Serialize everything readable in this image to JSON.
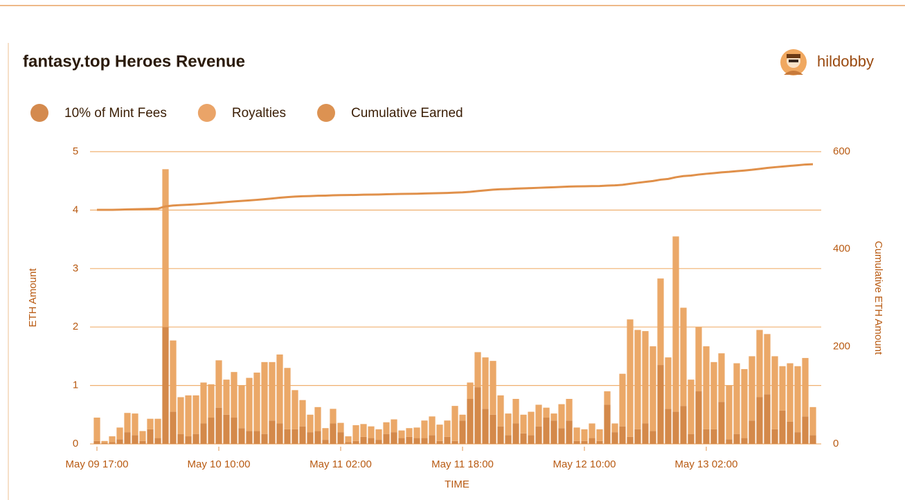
{
  "chart_data": {
    "type": "bar",
    "stacked": true,
    "title": "fantasy.top Heroes Revenue",
    "author": "hildobby",
    "x_label": "TIME",
    "y_label": "ETH Amount",
    "y2_label": "Cumulative ETH Amount",
    "categories": [
      "May 09 17:00",
      null,
      null,
      null,
      null,
      null,
      null,
      null,
      null,
      null,
      null,
      null,
      null,
      null,
      null,
      null,
      "May 10 10:00",
      null,
      null,
      null,
      null,
      null,
      null,
      null,
      null,
      null,
      null,
      null,
      null,
      null,
      null,
      null,
      "May 11 02:00",
      null,
      null,
      null,
      null,
      null,
      null,
      null,
      null,
      null,
      null,
      null,
      null,
      null,
      null,
      null,
      "May 11 18:00",
      null,
      null,
      null,
      null,
      null,
      null,
      null,
      null,
      null,
      null,
      null,
      null,
      null,
      null,
      null,
      "May 12 10:00",
      null,
      null,
      null,
      null,
      null,
      null,
      null,
      null,
      null,
      null,
      null,
      null,
      null,
      null,
      null,
      "May 13 02:00",
      null,
      null,
      null,
      null,
      null,
      null,
      null,
      null,
      null,
      null,
      null,
      null,
      null,
      null
    ],
    "series": [
      {
        "name": "10% of Mint Fees",
        "color": "#d4894a",
        "legend_color": "#d48a4e",
        "values": [
          0.05,
          0.02,
          0.03,
          0.08,
          0.2,
          0.15,
          0.05,
          0.25,
          0.1,
          2.0,
          0.55,
          0.17,
          0.13,
          0.17,
          0.35,
          0.45,
          0.62,
          0.5,
          0.45,
          0.27,
          0.22,
          0.22,
          0.17,
          0.4,
          0.35,
          0.25,
          0.25,
          0.3,
          0.2,
          0.22,
          0.07,
          0.35,
          0.2,
          0.03,
          0.05,
          0.12,
          0.1,
          0.07,
          0.17,
          0.2,
          0.1,
          0.12,
          0.1,
          0.1,
          0.15,
          0.05,
          0.12,
          0.05,
          0.4,
          0.77,
          0.97,
          0.6,
          0.5,
          0.3,
          0.15,
          0.35,
          0.18,
          0.15,
          0.3,
          0.45,
          0.4,
          0.27,
          0.4,
          0.05,
          0.05,
          0.1,
          0.05,
          0.67,
          0.2,
          0.3,
          0.12,
          0.25,
          0.35,
          0.22,
          1.35,
          0.6,
          0.55,
          0.65,
          0.17,
          0.9,
          0.25,
          0.25,
          0.72,
          0.08,
          0.17,
          0.1,
          0.4,
          0.8,
          0.85,
          0.25,
          0.57,
          0.38,
          0.2,
          0.47,
          0.15
        ]
      },
      {
        "name": "Royalties",
        "color": "#eba868",
        "legend_color": "#eaa468",
        "values": [
          0.4,
          0.03,
          0.1,
          0.2,
          0.33,
          0.37,
          0.17,
          0.18,
          0.33,
          2.7,
          1.22,
          0.63,
          0.7,
          0.66,
          0.7,
          0.57,
          0.81,
          0.6,
          0.78,
          0.73,
          0.91,
          1.0,
          1.23,
          1.0,
          1.18,
          1.05,
          0.67,
          0.45,
          0.3,
          0.41,
          0.2,
          0.25,
          0.16,
          0.1,
          0.27,
          0.22,
          0.2,
          0.18,
          0.2,
          0.22,
          0.13,
          0.15,
          0.18,
          0.3,
          0.32,
          0.28,
          0.28,
          0.6,
          0.1,
          0.28,
          0.6,
          0.88,
          0.92,
          0.53,
          0.37,
          0.42,
          0.32,
          0.4,
          0.37,
          0.17,
          0.12,
          0.41,
          0.37,
          0.23,
          0.2,
          0.25,
          0.2,
          0.23,
          0.15,
          0.9,
          2.01,
          1.7,
          1.58,
          1.45,
          1.48,
          0.88,
          3.0,
          1.68,
          0.93,
          1.1,
          1.42,
          1.15,
          0.83,
          0.92,
          1.21,
          1.18,
          1.1,
          1.15,
          1.03,
          1.25,
          0.76,
          1.0,
          1.13,
          1.0,
          0.48
        ]
      },
      {
        "name": "Cumulative Earned",
        "color": "#e0904a",
        "legend_color": "#dc9252",
        "axis": "y2",
        "line": true,
        "values": [
          480.5,
          480.5,
          480.6,
          480.9,
          481.4,
          481.9,
          482.1,
          482.6,
          483.0,
          487.7,
          489.5,
          490.3,
          491.1,
          491.9,
          493.0,
          494.0,
          495.4,
          496.5,
          497.8,
          498.8,
          499.9,
          501.1,
          502.5,
          503.9,
          505.4,
          506.7,
          507.7,
          508.4,
          508.9,
          509.5,
          509.8,
          510.4,
          510.8,
          510.9,
          511.2,
          511.6,
          511.9,
          512.1,
          512.5,
          512.9,
          513.2,
          513.4,
          513.7,
          514.1,
          514.6,
          514.9,
          515.3,
          516.0,
          516.5,
          517.5,
          519.1,
          520.6,
          522.0,
          522.8,
          523.3,
          524.1,
          524.6,
          525.2,
          525.8,
          526.4,
          527.0,
          527.6,
          528.4,
          528.7,
          528.9,
          529.3,
          529.5,
          530.4,
          530.8,
          532.0,
          534.1,
          536.1,
          538.0,
          539.7,
          542.5,
          544.0,
          547.5,
          549.9,
          551.0,
          553.0,
          554.6,
          556.0,
          557.6,
          558.6,
          560.0,
          561.3,
          562.8,
          564.7,
          566.6,
          568.1,
          569.4,
          570.8,
          572.1,
          573.6,
          574.2
        ]
      }
    ],
    "ylim": [
      0,
      5
    ],
    "yticks": [
      0,
      1,
      2,
      3,
      4,
      5
    ],
    "y2lim": [
      0,
      600
    ],
    "y2ticks": [
      0,
      200,
      400,
      600
    ],
    "grid": true
  }
}
